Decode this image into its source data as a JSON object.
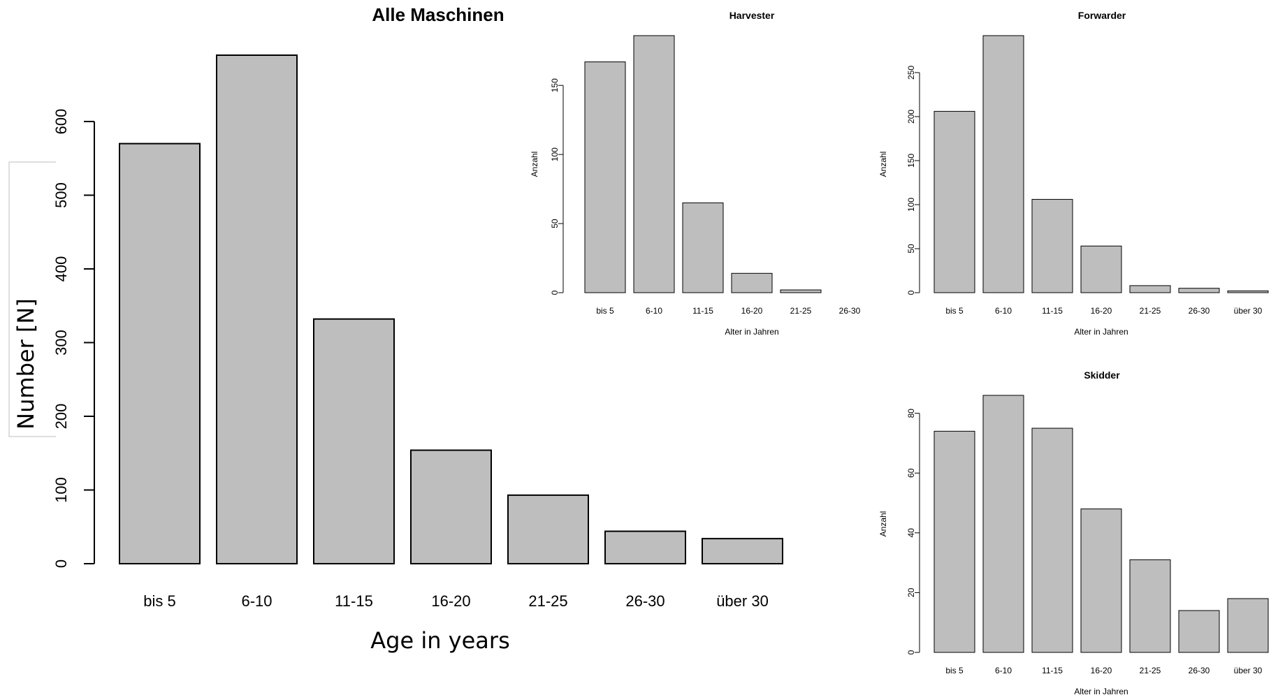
{
  "chart_data": [
    {
      "id": "alle",
      "type": "bar",
      "title": "Alle Maschinen",
      "xlabel": "Age in years",
      "ylabel": "Number [N]",
      "categories": [
        "bis 5",
        "6-10",
        "11-15",
        "16-20",
        "21-25",
        "26-30",
        "über 30"
      ],
      "values": [
        570,
        690,
        332,
        154,
        93,
        44,
        34
      ],
      "ylim": [
        0,
        690
      ],
      "yticks": [
        0,
        100,
        200,
        300,
        400,
        500,
        600
      ],
      "grid": false,
      "bar_color": "#bebebe"
    },
    {
      "id": "harvester",
      "type": "bar",
      "title": "Harvester",
      "xlabel": "Alter in Jahren",
      "ylabel": "Anzahl",
      "categories": [
        "bis 5",
        "6-10",
        "11-15",
        "16-20",
        "21-25",
        "26-30"
      ],
      "values": [
        167,
        186,
        65,
        14,
        2,
        0
      ],
      "ylim": [
        0,
        186
      ],
      "yticks": [
        0,
        50,
        100,
        150
      ],
      "grid": false,
      "bar_color": "#bebebe"
    },
    {
      "id": "forwarder",
      "type": "bar",
      "title": "Forwarder",
      "xlabel": "Alter in Jahren",
      "ylabel": "Anzahl",
      "categories": [
        "bis 5",
        "6-10",
        "11-15",
        "16-20",
        "21-25",
        "26-30",
        "über 30"
      ],
      "values": [
        206,
        292,
        106,
        53,
        8,
        5,
        2
      ],
      "ylim": [
        0,
        292
      ],
      "yticks": [
        0,
        50,
        100,
        150,
        200,
        250
      ],
      "grid": false,
      "bar_color": "#bebebe"
    },
    {
      "id": "skidder",
      "type": "bar",
      "title": "Skidder",
      "xlabel": "Alter in Jahren",
      "ylabel": "Anzahl",
      "categories": [
        "bis 5",
        "6-10",
        "11-15",
        "16-20",
        "21-25",
        "26-30",
        "über 30"
      ],
      "values": [
        74,
        86,
        75,
        48,
        31,
        14,
        18
      ],
      "ylim": [
        0,
        86
      ],
      "yticks": [
        0,
        20,
        40,
        60,
        80
      ],
      "grid": false,
      "bar_color": "#bebebe"
    }
  ]
}
